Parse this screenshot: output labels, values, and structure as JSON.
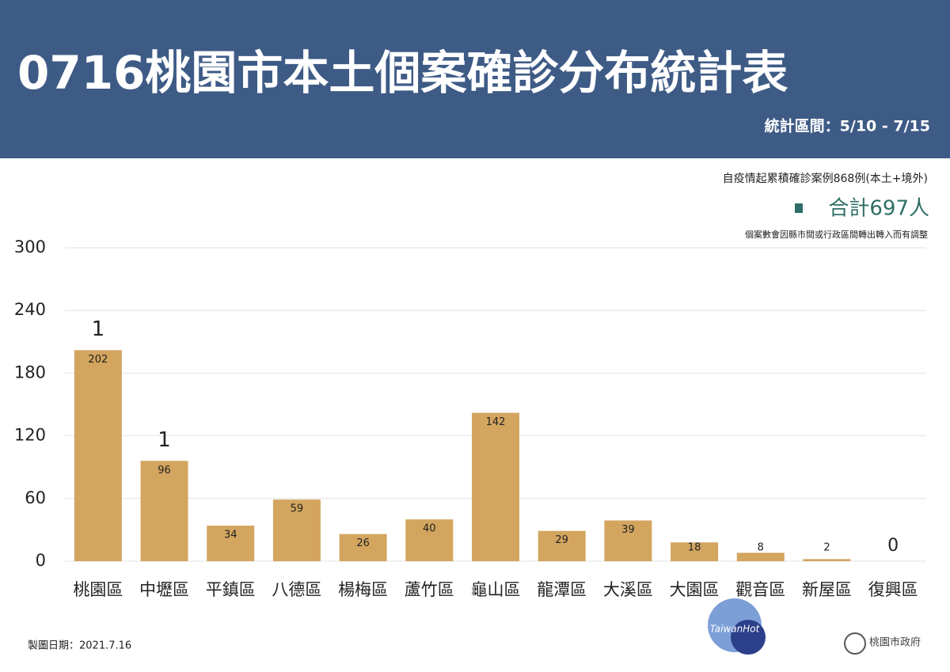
{
  "chart_data": {
    "type": "bar",
    "title": "0716桃園市本土個案確診分布統計表",
    "subtitle": "統計區間：5/10 - 7/15",
    "notes": [
      "自疫情起累積確診案例868例(本土+境外)",
      "合計697人",
      "個案數會因縣市間或行政區間轉出轉入而有調整"
    ],
    "footer": "製圖日期：2021.7.16",
    "logo": "桃園市政府",
    "watermark": "TaiwanHot",
    "categories": [
      "桃園區",
      "中壢區",
      "平鎮區",
      "八德區",
      "楊梅區",
      "蘆竹區",
      "龜山區",
      "龍潭區",
      "大溪區",
      "大園區",
      "觀音區",
      "新屋區",
      "復興區"
    ],
    "values": [
      202,
      96,
      34,
      59,
      26,
      40,
      142,
      29,
      39,
      18,
      8,
      2,
      0
    ],
    "top_labels": [
      1,
      1,
      null,
      null,
      null,
      null,
      null,
      null,
      null,
      null,
      null,
      null,
      null
    ],
    "color": "#d3a55f",
    "ylim": [
      0,
      300
    ],
    "yticks": [
      0,
      60,
      120,
      180,
      240,
      300
    ],
    "grid": true
  }
}
